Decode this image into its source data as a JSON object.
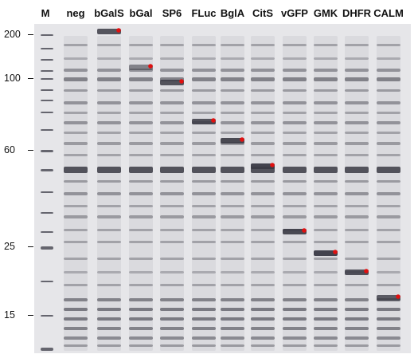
{
  "gel": {
    "lanes": [
      "M",
      "neg",
      "bGalS",
      "bGal",
      "SP6",
      "FLuc",
      "BglA",
      "CitS",
      "vGFP",
      "GMK",
      "DHFR",
      "CALM"
    ],
    "molecular_weight_markers": [
      "200",
      "100",
      "60",
      "25",
      "15"
    ],
    "colors": {
      "background": "#e6e6e9",
      "band": "#3a3a44",
      "marker_dot": "#e01010",
      "text": "#111111"
    }
  }
}
